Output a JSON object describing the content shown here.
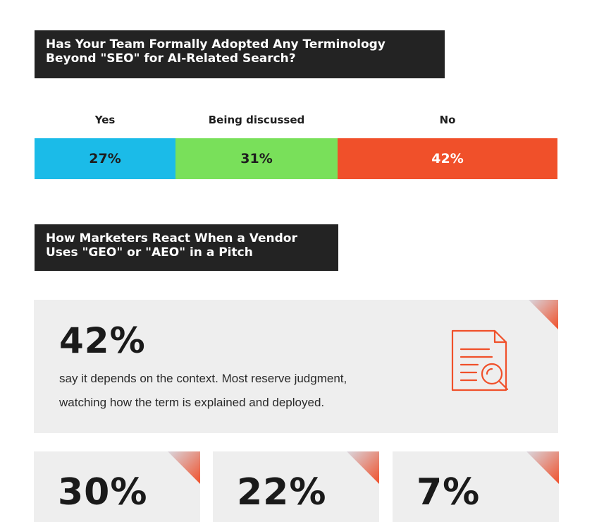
{
  "section1": {
    "title_line1": "Has Your Team Formally Adopted Any Terminology",
    "title_line2": "Beyond \"SEO\" for AI-Related Search?"
  },
  "chart_data": {
    "type": "bar",
    "orientation": "horizontal-stacked",
    "categories": [
      "Yes",
      "Being discussed",
      "No"
    ],
    "values": [
      27,
      31,
      42
    ],
    "value_labels": [
      "27%",
      "31%",
      "42%"
    ],
    "colors": [
      "#1bbbe8",
      "#79e05a",
      "#f0502a"
    ],
    "label_colors": [
      "#1e1e1e",
      "#1e1e1e",
      "#ffffff"
    ],
    "title": "Has Your Team Formally Adopted Any Terminology Beyond \"SEO\" for AI-Related Search?",
    "xlabel": "",
    "ylabel": ""
  },
  "section2": {
    "title_line1": "How Marketers React When a Vendor",
    "title_line2": "Uses \"GEO\" or \"AEO\" in a Pitch",
    "main_stat": {
      "value": "42%",
      "desc_line1": "say it depends on the context. Most reserve judgment,",
      "desc_line2": "watching how the term is explained and deployed.",
      "icon": "document-search-icon"
    },
    "small_stats": [
      {
        "value": "30%"
      },
      {
        "value": "22%"
      },
      {
        "value": "7%"
      }
    ]
  },
  "colors": {
    "accent": "#f0502a",
    "card_bg": "#eeeeee",
    "title_bg": "#232323"
  }
}
